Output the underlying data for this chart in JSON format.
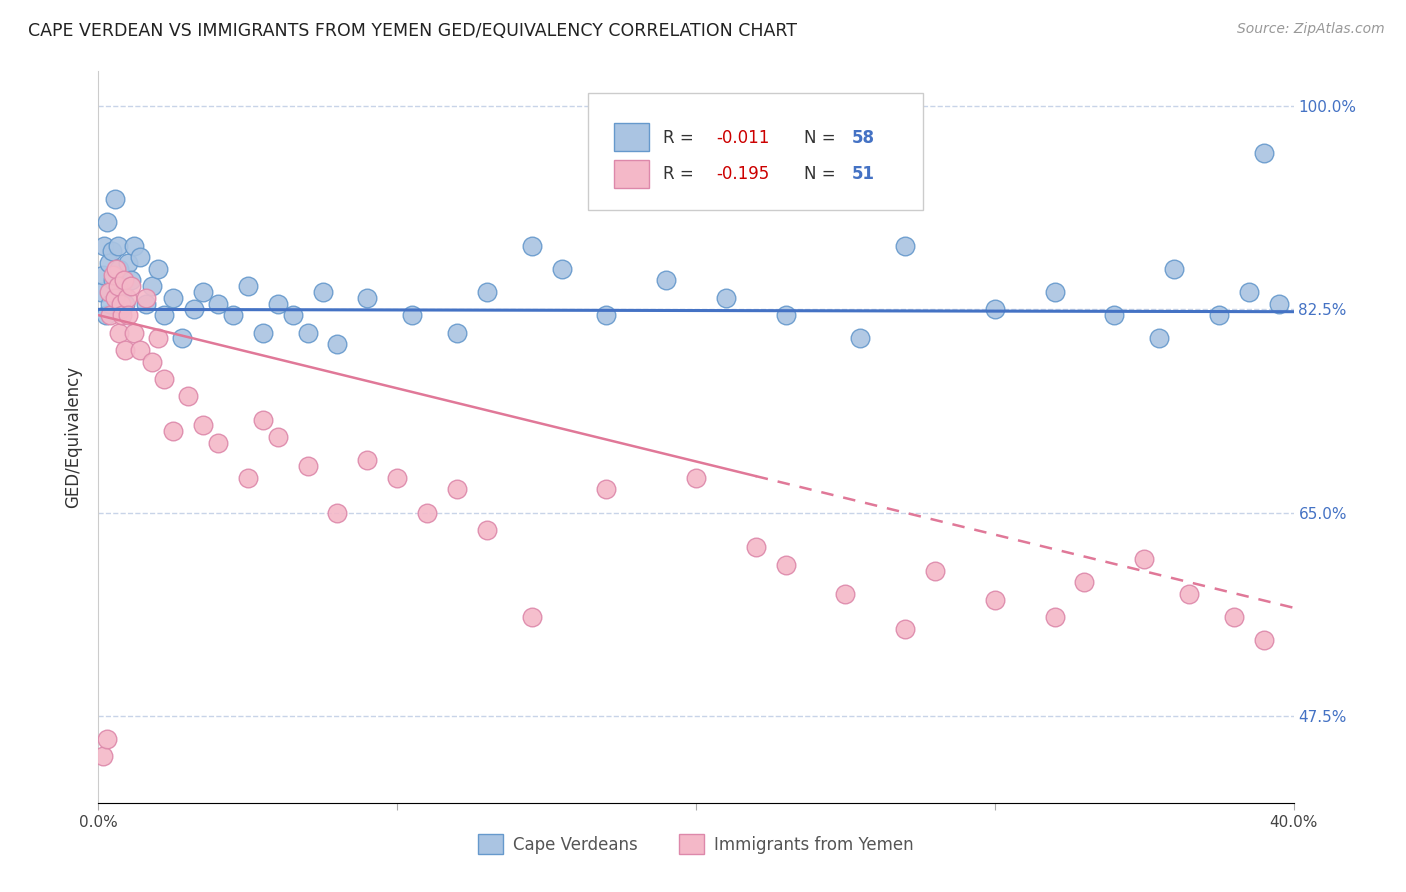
{
  "title": "CAPE VERDEAN VS IMMIGRANTS FROM YEMEN GED/EQUIVALENCY CORRELATION CHART",
  "source": "Source: ZipAtlas.com",
  "ylabel": "GED/Equivalency",
  "xlim": [
    0.0,
    40.0
  ],
  "ylim": [
    40.0,
    103.0
  ],
  "yticks": [
    47.5,
    65.0,
    82.5,
    100.0
  ],
  "ytick_labels": [
    "47.5%",
    "65.0%",
    "82.5%",
    "100.0%"
  ],
  "blue_color": "#aac4e2",
  "blue_edge_color": "#6699cc",
  "blue_line_color": "#4472c4",
  "pink_color": "#f4b8c8",
  "pink_edge_color": "#dd88aa",
  "pink_line_color": "#e07898",
  "background": "#ffffff",
  "grid_color": "#c8d4e8",
  "blue_line_y0": 82.5,
  "blue_line_slope": -0.005,
  "pink_line_y0": 82.0,
  "pink_line_slope": -0.63,
  "pink_solid_end_x": 22.0,
  "blue_x": [
    0.1,
    0.15,
    0.2,
    0.25,
    0.3,
    0.35,
    0.4,
    0.45,
    0.5,
    0.55,
    0.6,
    0.65,
    0.7,
    0.75,
    0.8,
    0.9,
    1.0,
    1.1,
    1.2,
    1.4,
    1.6,
    1.8,
    2.0,
    2.2,
    2.5,
    2.8,
    3.2,
    3.5,
    4.0,
    4.5,
    5.0,
    5.5,
    6.0,
    6.5,
    7.0,
    7.5,
    8.0,
    9.0,
    10.5,
    12.0,
    13.0,
    14.5,
    15.5,
    17.0,
    19.0,
    21.0,
    23.0,
    25.5,
    27.0,
    30.0,
    32.0,
    34.0,
    35.5,
    36.0,
    37.5,
    38.5,
    39.0,
    39.5
  ],
  "blue_y": [
    84.0,
    85.5,
    88.0,
    82.0,
    90.0,
    86.5,
    83.0,
    87.5,
    85.0,
    92.0,
    83.5,
    88.0,
    86.0,
    82.5,
    84.0,
    83.0,
    86.5,
    85.0,
    88.0,
    87.0,
    83.0,
    84.5,
    86.0,
    82.0,
    83.5,
    80.0,
    82.5,
    84.0,
    83.0,
    82.0,
    84.5,
    80.5,
    83.0,
    82.0,
    80.5,
    84.0,
    79.5,
    83.5,
    82.0,
    80.5,
    84.0,
    88.0,
    86.0,
    82.0,
    85.0,
    83.5,
    82.0,
    80.0,
    88.0,
    82.5,
    84.0,
    82.0,
    80.0,
    86.0,
    82.0,
    84.0,
    96.0,
    83.0
  ],
  "pink_x": [
    0.15,
    0.3,
    0.35,
    0.4,
    0.5,
    0.55,
    0.6,
    0.65,
    0.7,
    0.75,
    0.8,
    0.85,
    0.9,
    0.95,
    1.0,
    1.1,
    1.2,
    1.4,
    1.6,
    1.8,
    2.0,
    2.2,
    2.5,
    3.0,
    3.5,
    4.0,
    5.0,
    5.5,
    6.0,
    7.0,
    8.0,
    9.0,
    10.0,
    11.0,
    12.0,
    13.0,
    14.5,
    17.0,
    20.0,
    22.0,
    23.0,
    25.0,
    27.0,
    28.0,
    30.0,
    32.0,
    33.0,
    35.0,
    36.5,
    38.0,
    39.0
  ],
  "pink_y": [
    44.0,
    45.5,
    84.0,
    82.0,
    85.5,
    83.5,
    86.0,
    84.5,
    80.5,
    83.0,
    82.0,
    85.0,
    79.0,
    83.5,
    82.0,
    84.5,
    80.5,
    79.0,
    83.5,
    78.0,
    80.0,
    76.5,
    72.0,
    75.0,
    72.5,
    71.0,
    68.0,
    73.0,
    71.5,
    69.0,
    65.0,
    69.5,
    68.0,
    65.0,
    67.0,
    63.5,
    56.0,
    67.0,
    68.0,
    62.0,
    60.5,
    58.0,
    55.0,
    60.0,
    57.5,
    56.0,
    59.0,
    61.0,
    58.0,
    56.0,
    54.0
  ]
}
